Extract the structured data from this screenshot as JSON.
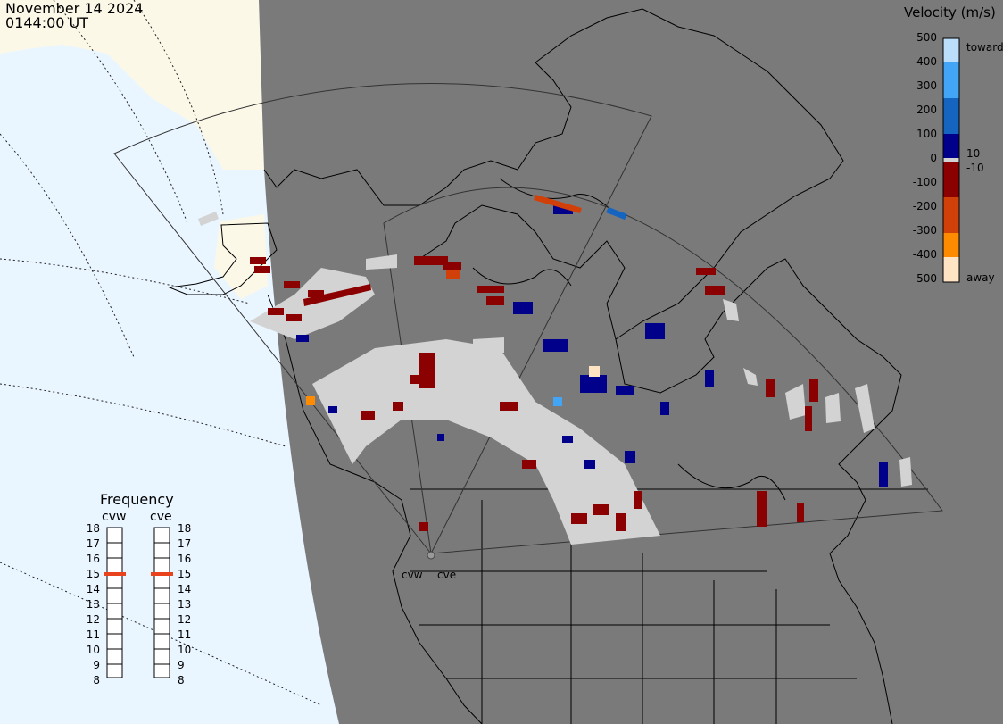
{
  "header": {
    "date": "November 14 2024",
    "time": "0144:00 UT"
  },
  "velocity_scale": {
    "title": "Velocity (m/s)",
    "ticks": [
      "500",
      "400",
      "300",
      "200",
      "100",
      "0",
      "-100",
      "-200",
      "-300",
      "-400",
      "-500"
    ],
    "label_toward": "toward",
    "label_away": "away",
    "label_pos10": "10",
    "label_neg10": "-10",
    "colors": [
      "#ffe4c4",
      "#ff8c00",
      "#d2400a",
      "#8b0000",
      "#00008b",
      "#1565c0",
      "#42a5f5",
      "#bbdefb"
    ]
  },
  "frequency_panel": {
    "title": "Frequency",
    "radars": [
      {
        "name": "cvw",
        "current_mhz": 15
      },
      {
        "name": "cve",
        "current_mhz": 15
      }
    ],
    "scale_left": [
      "18",
      "17",
      "16",
      "15",
      "14",
      "13",
      "12",
      "11",
      "10",
      "9",
      "8"
    ],
    "scale_right": [
      "18",
      "17",
      "16",
      "15",
      "14",
      "13",
      "12",
      "11",
      "10",
      "9",
      "8"
    ],
    "indicator_color": "#e8431c"
  },
  "radar_sites": [
    {
      "label": "cvw"
    },
    {
      "label": "cve"
    }
  ],
  "map_colors": {
    "land": "#7a7a7a",
    "dark_side": "#eaf6ff",
    "lit_land": "#fbf8e8",
    "ground_scatter": "#d3d3d3"
  }
}
